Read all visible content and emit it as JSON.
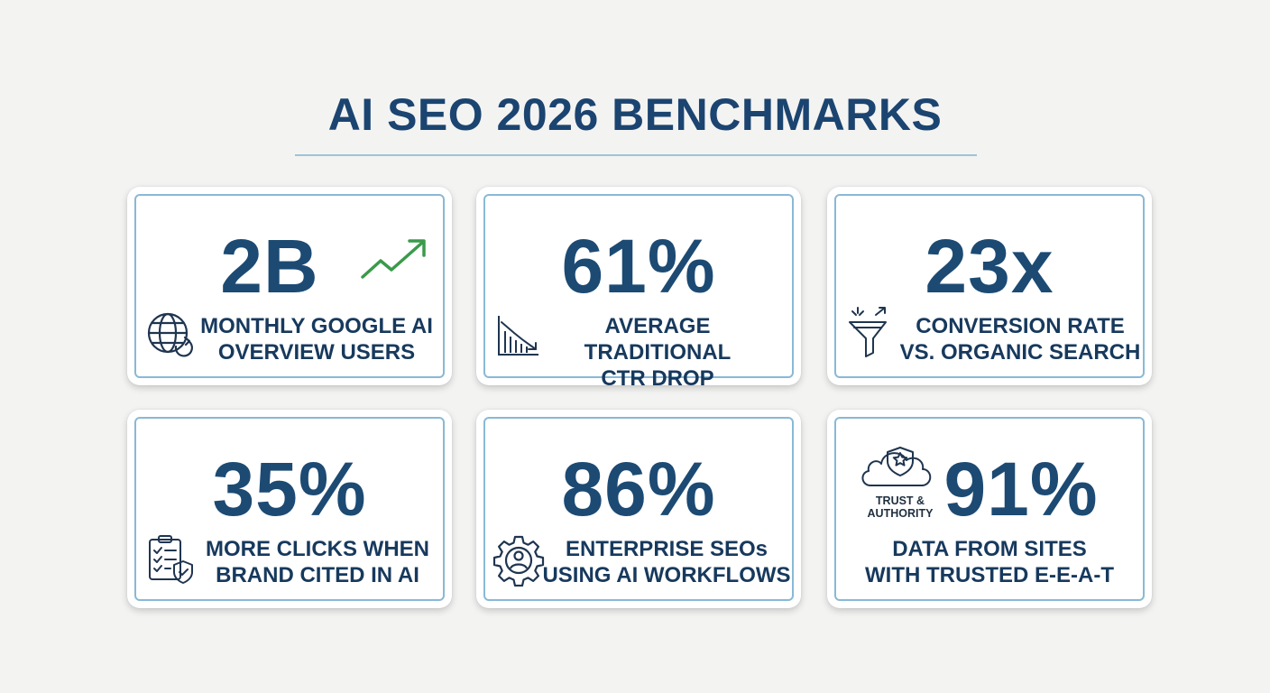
{
  "title": "AI SEO 2026 BENCHMARKS",
  "colors": {
    "navy": "#1c4a73",
    "accent_green": "#3a9a4a",
    "border": "#89b9d6"
  },
  "cards": [
    {
      "value": "2B",
      "label_line1": "MONTHLY GOOGLE AI",
      "label_line2": "OVERVIEW USERS",
      "icon": "globe-refresh-icon",
      "value_icon": "trend-up-arrow-icon"
    },
    {
      "value": "61%",
      "label_line1": "AVERAGE TRADITIONAL",
      "label_line2": "CTR DROP",
      "icon": "declining-bar-chart-icon"
    },
    {
      "value": "23x",
      "label_line1": "CONVERSION RATE",
      "label_line2": "VS. ORGANIC SEARCH",
      "icon": "conversion-funnel-icon"
    },
    {
      "value": "35%",
      "label_line1": "MORE CLICKS WHEN",
      "label_line2": "BRAND CITED IN AI",
      "icon": "checklist-shield-icon"
    },
    {
      "value": "86%",
      "label_line1": "ENTERPRISE SEOs",
      "label_line2": "USING AI WORKFLOWS",
      "icon": "gear-user-icon"
    },
    {
      "value": "91%",
      "label_line1": "DATA FROM SITES",
      "label_line2": "WITH TRUSTED E-E-A-T",
      "icon": "trust-shield-cloud-icon",
      "badge_line1": "TRUST &",
      "badge_line2": "AUTHORITY"
    }
  ]
}
